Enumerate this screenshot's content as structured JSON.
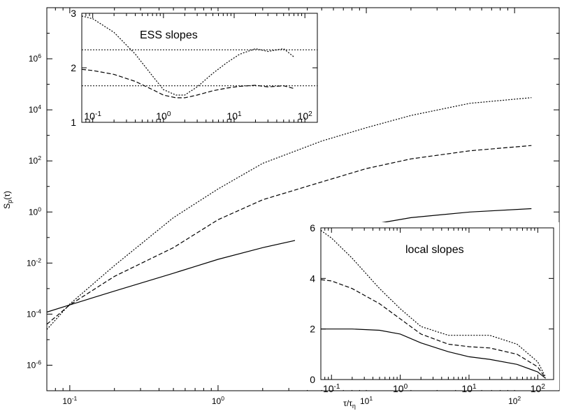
{
  "chart_data": [
    {
      "type": "line",
      "role": "main",
      "xlabel": "τ/τη",
      "ylabel": "Sp(τ)",
      "xscale": "log",
      "yscale": "log",
      "xlim": [
        0.07,
        200
      ],
      "ylim": [
        1e-07,
        100000000.0
      ],
      "x_ticks": [
        {
          "value": 0.1,
          "base": "10",
          "exp": "-1"
        },
        {
          "value": 1,
          "base": "10",
          "exp": "0"
        },
        {
          "value": 10,
          "base": "10",
          "exp": "1"
        },
        {
          "value": 100,
          "base": "10",
          "exp": "2"
        }
      ],
      "y_ticks": [
        {
          "value": 1e-06,
          "base": "10",
          "exp": "-6"
        },
        {
          "value": 0.0001,
          "base": "10",
          "exp": "-4"
        },
        {
          "value": 0.01,
          "base": "10",
          "exp": "-2"
        },
        {
          "value": 1,
          "base": "10",
          "exp": "0"
        },
        {
          "value": 100.0,
          "base": "10",
          "exp": "2"
        },
        {
          "value": 10000.0,
          "base": "10",
          "exp": "4"
        },
        {
          "value": 1000000.0,
          "base": "10",
          "exp": "6"
        }
      ],
      "series": [
        {
          "style": "solid",
          "x": [
            0.07,
            0.1,
            0.2,
            0.5,
            1,
            2,
            5,
            10,
            20,
            50,
            130
          ],
          "y": [
            0.00012,
            0.00023,
            0.0008,
            0.004,
            0.014,
            0.04,
            0.13,
            0.3,
            0.6,
            1.0,
            1.35
          ]
        },
        {
          "style": "dashed",
          "x": [
            0.07,
            0.1,
            0.2,
            0.5,
            1,
            2,
            5,
            10,
            20,
            50,
            130
          ],
          "y": [
            4e-05,
            0.00023,
            0.003,
            0.04,
            0.5,
            3,
            15,
            50,
            120,
            250,
            400
          ]
        },
        {
          "style": "dotted",
          "x": [
            0.07,
            0.1,
            0.2,
            0.5,
            1,
            2,
            5,
            10,
            20,
            50,
            130
          ],
          "y": [
            2.5e-05,
            0.00025,
            0.008,
            0.6,
            8,
            80,
            600,
            2000,
            6000,
            18000,
            30000
          ]
        }
      ]
    },
    {
      "type": "line",
      "role": "inset-top",
      "title": "ESS slopes",
      "xscale": "log",
      "xlim": [
        0.07,
        150
      ],
      "ylim": [
        1,
        3
      ],
      "x_ticks": [
        {
          "value": 0.1,
          "base": "10",
          "exp": "-1"
        },
        {
          "value": 1,
          "base": "10",
          "exp": "0"
        },
        {
          "value": 10,
          "base": "10",
          "exp": "1"
        },
        {
          "value": 100,
          "base": "10",
          "exp": "2"
        }
      ],
      "y_ticks": [
        1,
        2,
        3
      ],
      "reference_lines": [
        2.33,
        1.67
      ],
      "series": [
        {
          "style": "dotted",
          "x": [
            0.07,
            0.1,
            0.2,
            0.4,
            0.7,
            1,
            1.5,
            2,
            3,
            5,
            8,
            12,
            20,
            30,
            50,
            70
          ],
          "y": [
            2.95,
            2.9,
            2.65,
            2.25,
            1.85,
            1.6,
            1.5,
            1.5,
            1.65,
            1.9,
            2.1,
            2.25,
            2.35,
            2.3,
            2.35,
            2.2
          ]
        },
        {
          "style": "dashed",
          "x": [
            0.07,
            0.1,
            0.2,
            0.4,
            0.7,
            1,
            1.5,
            2,
            3,
            5,
            8,
            12,
            20,
            30,
            50,
            70
          ],
          "y": [
            1.97,
            1.95,
            1.88,
            1.75,
            1.6,
            1.5,
            1.45,
            1.45,
            1.5,
            1.58,
            1.63,
            1.66,
            1.68,
            1.65,
            1.67,
            1.62
          ]
        }
      ]
    },
    {
      "type": "line",
      "role": "inset-bottom",
      "title": "local slopes",
      "xscale": "log",
      "xlim": [
        0.07,
        170
      ],
      "ylim": [
        0,
        6
      ],
      "x_ticks": [
        {
          "value": 0.1,
          "base": "10",
          "exp": "-1"
        },
        {
          "value": 1,
          "base": "10",
          "exp": "0"
        },
        {
          "value": 10,
          "base": "10",
          "exp": "1"
        },
        {
          "value": 100,
          "base": "10",
          "exp": "2"
        }
      ],
      "y_ticks": [
        0,
        2,
        4,
        6
      ],
      "series": [
        {
          "style": "solid",
          "x": [
            0.07,
            0.1,
            0.2,
            0.5,
            1,
            2,
            5,
            10,
            20,
            50,
            100,
            130
          ],
          "y": [
            2,
            2,
            2,
            1.95,
            1.8,
            1.45,
            1.1,
            0.9,
            0.8,
            0.6,
            0.3,
            0.05
          ]
        },
        {
          "style": "dashed",
          "x": [
            0.07,
            0.1,
            0.2,
            0.5,
            1,
            2,
            5,
            10,
            20,
            50,
            100,
            130
          ],
          "y": [
            3.95,
            3.9,
            3.6,
            3.0,
            2.4,
            1.8,
            1.4,
            1.3,
            1.25,
            1.0,
            0.5,
            0.05
          ]
        },
        {
          "style": "dotted",
          "x": [
            0.07,
            0.1,
            0.2,
            0.5,
            1,
            2,
            5,
            10,
            20,
            50,
            100,
            130
          ],
          "y": [
            5.9,
            5.6,
            4.8,
            3.6,
            2.8,
            2.1,
            1.75,
            1.75,
            1.75,
            1.4,
            0.7,
            0.1
          ]
        }
      ]
    }
  ]
}
